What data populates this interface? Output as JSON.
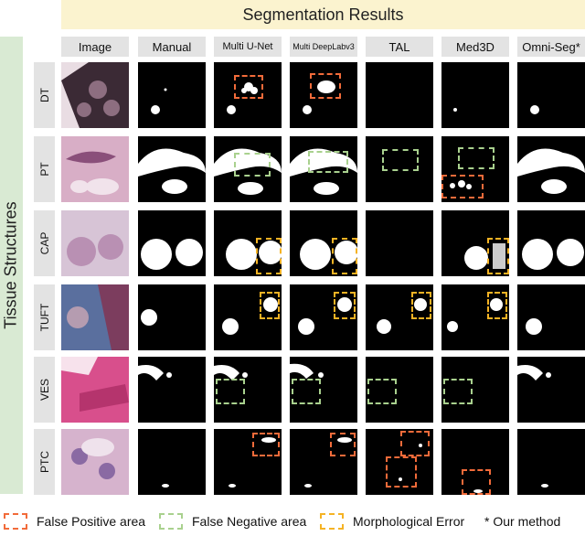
{
  "header": {
    "title": "Segmentation Results"
  },
  "side_label": "Tissue Structures",
  "columns": [
    "Image",
    "Manual",
    "Multi U-Net",
    "Multi DeepLabv3",
    "TAL",
    "Med3D",
    "Omni-Seg*"
  ],
  "rows": [
    "DT",
    "PT",
    "CAP",
    "TUFT",
    "VES",
    "PTC"
  ],
  "legend": {
    "false_positive": "False Positive area",
    "false_negative": "False Negative area",
    "morphological": "Morphological Error",
    "ours": "* Our method"
  },
  "colors": {
    "false_positive": "#f26b3a",
    "false_negative": "#a9d18e",
    "morphological": "#f5b324",
    "banner": "#fbf3cf",
    "side_band": "#d9ead3"
  }
}
